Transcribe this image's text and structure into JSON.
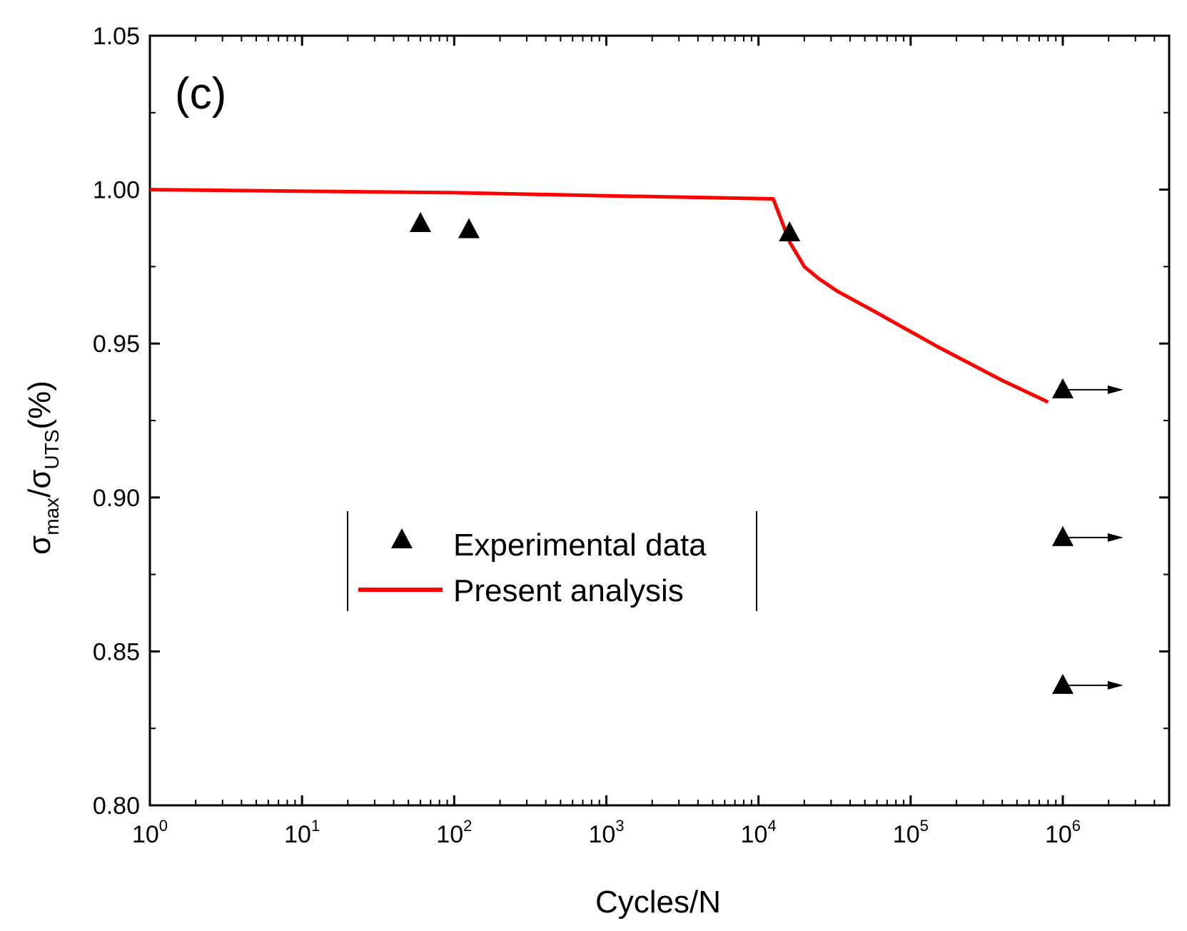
{
  "chart_data": {
    "type": "line",
    "panel_label": "(c)",
    "xlabel": "Cycles/N",
    "ylabel": {
      "sym": "σ",
      "num_sub": "max",
      "slash": "/",
      "den_sub": "UTS",
      "unit": "(%)"
    },
    "x_scale": "log10",
    "xlim": [
      1,
      5000000
    ],
    "ylim": [
      0.8,
      1.05
    ],
    "x_ticks": [
      {
        "value": 1,
        "base": "10",
        "exp": "0"
      },
      {
        "value": 10,
        "base": "10",
        "exp": "1"
      },
      {
        "value": 100,
        "base": "10",
        "exp": "2"
      },
      {
        "value": 1000,
        "base": "10",
        "exp": "3"
      },
      {
        "value": 10000,
        "base": "10",
        "exp": "4"
      },
      {
        "value": 100000,
        "base": "10",
        "exp": "5"
      },
      {
        "value": 1000000,
        "base": "10",
        "exp": "6"
      }
    ],
    "y_ticks": [
      {
        "value": 0.8,
        "label": "0.80"
      },
      {
        "value": 0.85,
        "label": "0.85"
      },
      {
        "value": 0.9,
        "label": "0.90"
      },
      {
        "value": 0.95,
        "label": "0.95"
      },
      {
        "value": 1.0,
        "label": "1.00"
      },
      {
        "value": 1.05,
        "label": "1.05"
      }
    ],
    "series": [
      {
        "name": "Present analysis",
        "kind": "line",
        "color": "#ff0000",
        "x": [
          1,
          100,
          1000,
          12500,
          16000,
          20000,
          25000,
          33000,
          60000,
          150000,
          400000,
          800000
        ],
        "y": [
          1.0,
          0.999,
          0.998,
          0.997,
          0.983,
          0.975,
          0.971,
          0.967,
          0.96,
          0.949,
          0.938,
          0.931
        ]
      },
      {
        "name": "Experimental data",
        "kind": "scatter",
        "marker": "triangle",
        "color": "#000000",
        "points": [
          {
            "x": 60,
            "y": 0.989,
            "runout": false
          },
          {
            "x": 125,
            "y": 0.987,
            "runout": false
          },
          {
            "x": 16000,
            "y": 0.986,
            "runout": false
          },
          {
            "x": 1000000,
            "y": 0.935,
            "runout": true
          },
          {
            "x": 1000000,
            "y": 0.887,
            "runout": true
          },
          {
            "x": 1000000,
            "y": 0.839,
            "runout": true
          }
        ]
      }
    ],
    "runout_arrow_to_x": 2500000,
    "legend": {
      "placement": "center-left",
      "entries": [
        "Experimental data",
        "Present analysis"
      ]
    }
  }
}
